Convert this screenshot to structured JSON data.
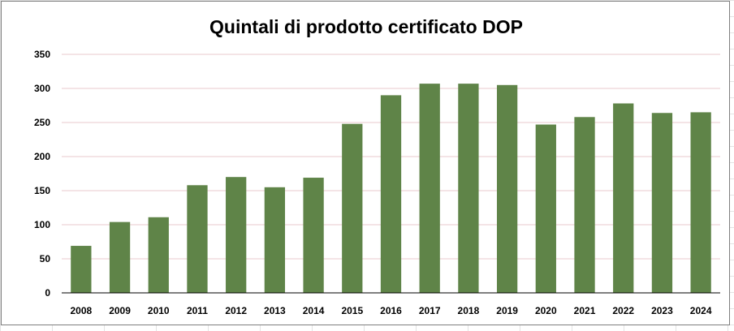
{
  "chart_data": {
    "type": "bar",
    "title": "Quintali di prodotto certificato DOP",
    "xlabel": "",
    "ylabel": "",
    "categories": [
      "2008",
      "2009",
      "2010",
      "2011",
      "2012",
      "2013",
      "2014",
      "2015",
      "2016",
      "2017",
      "2018",
      "2019",
      "2020",
      "2021",
      "2022",
      "2023",
      "2024"
    ],
    "values": [
      69,
      104,
      111,
      158,
      170,
      155,
      169,
      248,
      290,
      307,
      307,
      305,
      247,
      258,
      278,
      264,
      265
    ],
    "ylim": [
      0,
      350
    ],
    "yticks": [
      0,
      50,
      100,
      150,
      200,
      250,
      300,
      350
    ],
    "grid": "horizontal",
    "legend": "none",
    "bar_color": "#5f8448",
    "gridline_color": "#e8c8cc"
  }
}
